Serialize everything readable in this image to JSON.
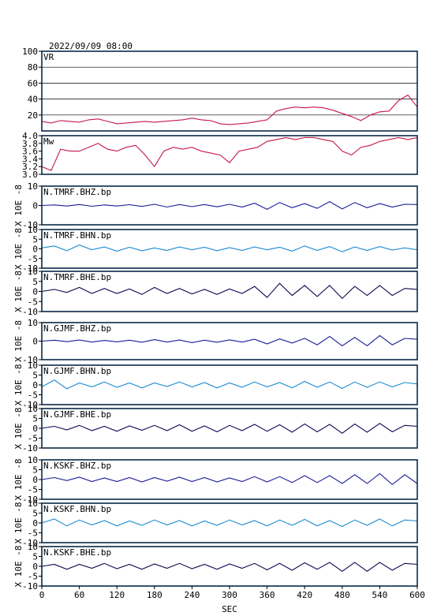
{
  "header": {
    "datetime": "2022/09/09 08:00"
  },
  "xaxis": {
    "label": "SEC",
    "min": 0,
    "max": 600,
    "ticks": [
      "0",
      "60",
      "120",
      "180",
      "240",
      "300",
      "360",
      "420",
      "480",
      "540",
      "600"
    ]
  },
  "colors": {
    "vr": "#c8174a",
    "mw": "#c8174a",
    "bhz": "#1a1a9a",
    "bhn": "#1a8ad4",
    "bhe": "#0a0a50",
    "frame": "#0a2a4a"
  },
  "chart_data": [
    {
      "type": "line",
      "panel": "vr",
      "title": "VR",
      "ylim": [
        0,
        100
      ],
      "yticks": [
        "20",
        "40",
        "60",
        "80",
        "100"
      ],
      "grid": true,
      "x": [
        0,
        15,
        30,
        45,
        60,
        75,
        90,
        105,
        120,
        135,
        150,
        165,
        180,
        195,
        210,
        225,
        240,
        255,
        270,
        285,
        300,
        315,
        330,
        345,
        360,
        375,
        390,
        405,
        420,
        435,
        450,
        465,
        480,
        495,
        510,
        525,
        540,
        555,
        570,
        585,
        600
      ],
      "values": [
        12,
        10,
        13,
        12,
        11,
        14,
        15,
        12,
        9,
        10,
        11,
        12,
        11,
        12,
        13,
        14,
        16,
        14,
        13,
        9,
        8,
        9,
        10,
        12,
        14,
        25,
        28,
        30,
        29,
        30,
        29,
        26,
        22,
        18,
        13,
        20,
        24,
        25,
        38,
        45,
        30
      ]
    },
    {
      "type": "line",
      "panel": "mw",
      "title": "Mw",
      "ylim": [
        3.0,
        4.0
      ],
      "yticks": [
        "3.0",
        "3.2",
        "3.4",
        "3.6",
        "3.8",
        "4.0"
      ],
      "x": [
        0,
        15,
        30,
        45,
        60,
        75,
        90,
        105,
        120,
        135,
        150,
        165,
        180,
        195,
        210,
        225,
        240,
        255,
        270,
        285,
        300,
        315,
        330,
        345,
        360,
        375,
        390,
        405,
        420,
        435,
        450,
        465,
        480,
        495,
        510,
        525,
        540,
        555,
        570,
        585,
        600
      ],
      "values": [
        3.2,
        3.1,
        3.65,
        3.6,
        3.6,
        3.7,
        3.8,
        3.65,
        3.6,
        3.7,
        3.75,
        3.5,
        3.2,
        3.6,
        3.7,
        3.65,
        3.7,
        3.6,
        3.55,
        3.5,
        3.3,
        3.6,
        3.65,
        3.7,
        3.85,
        3.9,
        3.95,
        3.9,
        3.95,
        3.95,
        3.9,
        3.85,
        3.6,
        3.5,
        3.7,
        3.75,
        3.85,
        3.9,
        3.95,
        3.9,
        3.95
      ]
    },
    {
      "type": "line",
      "panel": "trace",
      "title": "N.TMRF.BHZ.bp",
      "ylabel": "X 10E -8",
      "ylim": [
        -10,
        10
      ],
      "yticks": [
        "-10",
        "0",
        "10"
      ],
      "color_key": "bhz",
      "x": [
        0,
        20,
        40,
        60,
        80,
        100,
        120,
        140,
        160,
        180,
        200,
        220,
        240,
        260,
        280,
        300,
        320,
        340,
        360,
        380,
        400,
        420,
        440,
        460,
        480,
        500,
        520,
        540,
        560,
        580,
        600
      ],
      "values": [
        0,
        0.3,
        -0.3,
        0.5,
        -0.4,
        0.3,
        -0.3,
        0.4,
        -0.5,
        0.6,
        -0.8,
        0.5,
        -0.6,
        0.5,
        -0.7,
        0.6,
        -0.8,
        1.2,
        -2,
        1.5,
        -1.2,
        1,
        -1.5,
        2,
        -1.8,
        1.5,
        -1.2,
        1,
        -0.8,
        0.6,
        0.5
      ]
    },
    {
      "type": "line",
      "panel": "trace",
      "title": "N.TMRF.BHN.bp",
      "ylabel": "X 10E -8",
      "ylim": [
        -10,
        10
      ],
      "yticks": [
        "-10",
        "-5",
        "0",
        "5",
        "10"
      ],
      "color_key": "bhn",
      "x": [
        0,
        20,
        40,
        60,
        80,
        100,
        120,
        140,
        160,
        180,
        200,
        220,
        240,
        260,
        280,
        300,
        320,
        340,
        360,
        380,
        400,
        420,
        440,
        460,
        480,
        500,
        520,
        540,
        560,
        580,
        600
      ],
      "values": [
        0.5,
        1.5,
        -1,
        2,
        -0.5,
        1,
        -1.2,
        0.8,
        -1,
        0.5,
        -0.8,
        1,
        -0.5,
        0.8,
        -1,
        0.6,
        -0.8,
        1,
        -0.5,
        0.8,
        -1.2,
        1.5,
        -0.8,
        1.2,
        -1.5,
        1,
        -0.8,
        1.2,
        -0.6,
        0.5,
        -0.5
      ]
    },
    {
      "type": "line",
      "panel": "trace",
      "title": "N.TMRF.BHE.bp",
      "ylabel": "X 10E -8",
      "ylim": [
        -10,
        10
      ],
      "yticks": [
        "-10",
        "-5",
        "0",
        "5",
        "10"
      ],
      "color_key": "bhe",
      "x": [
        0,
        20,
        40,
        60,
        80,
        100,
        120,
        140,
        160,
        180,
        200,
        220,
        240,
        260,
        280,
        300,
        320,
        340,
        360,
        380,
        400,
        420,
        440,
        460,
        480,
        500,
        520,
        540,
        560,
        580,
        600
      ],
      "values": [
        0,
        1,
        -0.5,
        2,
        -1,
        1.5,
        -1,
        1.2,
        -1.5,
        2,
        -1,
        1.5,
        -1.2,
        1,
        -1.5,
        1.2,
        -1,
        2.5,
        -3,
        4,
        -2,
        3,
        -2.5,
        3,
        -3.5,
        2.5,
        -2,
        3,
        -2,
        1.5,
        1
      ]
    },
    {
      "type": "line",
      "panel": "trace",
      "title": "N.GJMF.BHZ.bp",
      "ylabel": "X 10E -8",
      "ylim": [
        -10,
        10
      ],
      "yticks": [
        "-10",
        "0",
        "10"
      ],
      "color_key": "bhz",
      "x": [
        0,
        20,
        40,
        60,
        80,
        100,
        120,
        140,
        160,
        180,
        200,
        220,
        240,
        260,
        280,
        300,
        320,
        340,
        360,
        380,
        400,
        420,
        440,
        460,
        480,
        500,
        520,
        540,
        560,
        580,
        600
      ],
      "values": [
        0,
        0.5,
        -0.3,
        0.6,
        -0.5,
        0.4,
        -0.4,
        0.5,
        -0.6,
        0.8,
        -0.5,
        0.6,
        -0.8,
        0.5,
        -0.6,
        0.7,
        -0.5,
        1,
        -1.5,
        1.2,
        -1,
        1.5,
        -2,
        2.5,
        -2.5,
        2,
        -2.5,
        3,
        -2,
        1.5,
        1
      ]
    },
    {
      "type": "line",
      "panel": "trace",
      "title": "N.GJMF.BHN.bp",
      "ylabel": "X 10E -8",
      "ylim": [
        -10,
        10
      ],
      "yticks": [
        "-10",
        "-5",
        "0",
        "5",
        "10"
      ],
      "color_key": "bhn",
      "x": [
        0,
        20,
        40,
        60,
        80,
        100,
        120,
        140,
        160,
        180,
        200,
        220,
        240,
        260,
        280,
        300,
        320,
        340,
        360,
        380,
        400,
        420,
        440,
        460,
        480,
        500,
        520,
        540,
        560,
        580,
        600
      ],
      "values": [
        -1,
        2.5,
        -2,
        1,
        -1,
        1.5,
        -1.2,
        1,
        -1.5,
        1,
        -0.8,
        1.5,
        -1,
        1.2,
        -1.5,
        1,
        -1.2,
        1.5,
        -1,
        1.2,
        -1.5,
        1.8,
        -1.2,
        1.5,
        -1.8,
        1.5,
        -1.2,
        1.5,
        -1,
        1.2,
        0.5
      ]
    },
    {
      "type": "line",
      "panel": "trace",
      "title": "N.GJMF.BHE.bp",
      "ylabel": "X 10E -8",
      "ylim": [
        -10,
        10
      ],
      "yticks": [
        "-10",
        "-5",
        "0",
        "5",
        "10"
      ],
      "color_key": "bhe",
      "x": [
        0,
        20,
        40,
        60,
        80,
        100,
        120,
        140,
        160,
        180,
        200,
        220,
        240,
        260,
        280,
        300,
        320,
        340,
        360,
        380,
        400,
        420,
        440,
        460,
        480,
        500,
        520,
        540,
        560,
        580,
        600
      ],
      "values": [
        0,
        1,
        -0.8,
        1.5,
        -1.2,
        1,
        -1.5,
        1.2,
        -1,
        1.5,
        -1.2,
        1.8,
        -1.5,
        1.2,
        -1.8,
        1.5,
        -1.2,
        2,
        -1.5,
        1.8,
        -2,
        2.2,
        -1.8,
        2,
        -2.5,
        2.2,
        -2,
        2.5,
        -1.8,
        1.5,
        1
      ]
    },
    {
      "type": "line",
      "panel": "trace",
      "title": "N.KSKF.BHZ.bp",
      "ylabel": "X 10E -8",
      "ylim": [
        -10,
        10
      ],
      "yticks": [
        "-10",
        "-5",
        "0",
        "5",
        "10"
      ],
      "color_key": "bhz",
      "x": [
        0,
        20,
        40,
        60,
        80,
        100,
        120,
        140,
        160,
        180,
        200,
        220,
        240,
        260,
        280,
        300,
        320,
        340,
        360,
        380,
        400,
        420,
        440,
        460,
        480,
        500,
        520,
        540,
        560,
        580,
        600
      ],
      "values": [
        0,
        1,
        -0.5,
        1.2,
        -1,
        0.8,
        -1,
        1,
        -1.2,
        1,
        -0.8,
        1.2,
        -1,
        1,
        -1.2,
        0.8,
        -1,
        1.5,
        -1.2,
        1.5,
        -1.5,
        2,
        -1.5,
        2,
        -2,
        2.5,
        -2,
        3,
        -2.5,
        2.5,
        -2
      ]
    },
    {
      "type": "line",
      "panel": "trace",
      "title": "N.KSKF.BHN.bp",
      "ylabel": "X 10E -8",
      "ylim": [
        -10,
        10
      ],
      "yticks": [
        "-10",
        "-5",
        "0",
        "5",
        "10"
      ],
      "color_key": "bhn",
      "x": [
        0,
        20,
        40,
        60,
        80,
        100,
        120,
        140,
        160,
        180,
        200,
        220,
        240,
        260,
        280,
        300,
        320,
        340,
        360,
        380,
        400,
        420,
        440,
        460,
        480,
        500,
        520,
        540,
        560,
        580,
        600
      ],
      "values": [
        0,
        2,
        -1.5,
        1.5,
        -1,
        1.2,
        -1.5,
        1,
        -1.2,
        1.5,
        -1,
        1.2,
        -1.5,
        1,
        -1.2,
        1.5,
        -1,
        1.2,
        -1.5,
        1.5,
        -1.2,
        1.8,
        -1.5,
        1.2,
        -1.8,
        1.5,
        -1.2,
        2,
        -1.5,
        1.5,
        1
      ]
    },
    {
      "type": "line",
      "panel": "trace",
      "title": "N.KSKF.BHE.bp",
      "ylabel": "X 10E -8",
      "ylim": [
        -10,
        10
      ],
      "yticks": [
        "-10",
        "-5",
        "0",
        "5",
        "10"
      ],
      "color_key": "bhe",
      "x": [
        0,
        20,
        40,
        60,
        80,
        100,
        120,
        140,
        160,
        180,
        200,
        220,
        240,
        260,
        280,
        300,
        320,
        340,
        360,
        380,
        400,
        420,
        440,
        460,
        480,
        500,
        520,
        540,
        560,
        580,
        600
      ],
      "values": [
        0,
        1,
        -1.5,
        1,
        -1,
        1.5,
        -1.2,
        1,
        -1.5,
        1.2,
        -1,
        1.5,
        -1.2,
        1,
        -1.5,
        1.2,
        -1,
        1.5,
        -1.8,
        1.5,
        -2,
        1.8,
        -1.5,
        2,
        -2.5,
        2,
        -2.5,
        2,
        -2,
        1.5,
        1
      ]
    }
  ]
}
